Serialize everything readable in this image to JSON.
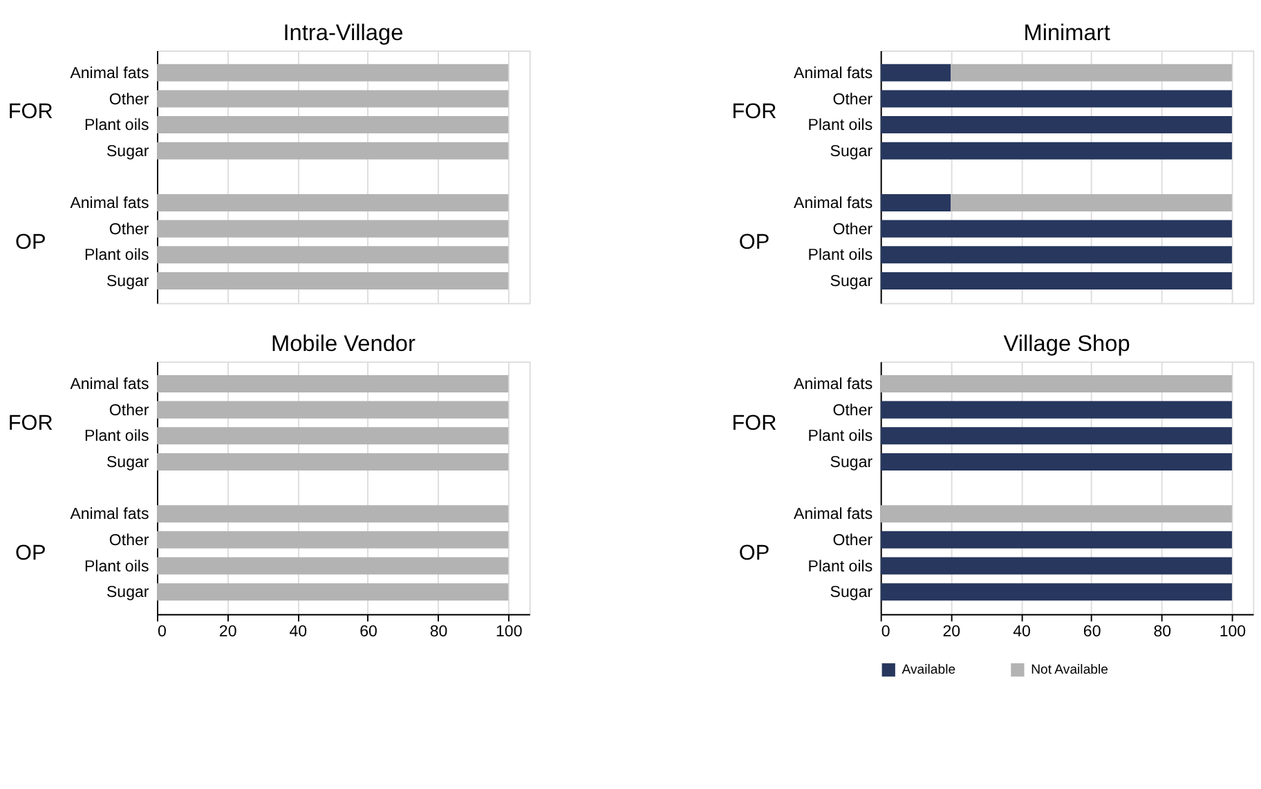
{
  "chart_data": [
    {
      "type": "bar",
      "title": "Intra-Village",
      "orientation": "horizontal",
      "stacked": true,
      "categories": [
        "Animal fats",
        "Other",
        "Plant oils",
        "Sugar",
        "Animal fats",
        "Other",
        "Plant oils",
        "Sugar"
      ],
      "annotations": [
        "FOR",
        "OP"
      ],
      "series": [
        {
          "color": "#27375e",
          "values": [
            0,
            0,
            0,
            0,
            0,
            0,
            0,
            0
          ]
        },
        {
          "color": "#b3b3b3",
          "values": [
            100,
            100,
            100,
            100,
            100,
            100,
            100,
            100
          ]
        }
      ],
      "xlim": [
        0,
        106
      ],
      "xticks": [
        0,
        20,
        40,
        60,
        80,
        100
      ],
      "grid": "x",
      "tick_labels": "y"
    },
    {
      "type": "bar",
      "title": "Minimart",
      "orientation": "horizontal",
      "stacked": true,
      "categories": [
        "Animal fats",
        "Other",
        "Plant oils",
        "Sugar",
        "Animal fats",
        "Other",
        "Plant oils",
        "Sugar"
      ],
      "annotations": [
        "FOR",
        "OP"
      ],
      "series": [
        {
          "color": "#27375e",
          "values": [
            20,
            100,
            100,
            100,
            20,
            100,
            100,
            100
          ]
        },
        {
          "color": "#b3b3b3",
          "values": [
            80,
            0,
            0,
            0,
            80,
            0,
            0,
            0
          ]
        }
      ],
      "xlim": [
        0,
        106
      ],
      "xticks": [
        0,
        20,
        40,
        60,
        80,
        100
      ],
      "grid": "x",
      "tick_labels": "y"
    },
    {
      "type": "bar",
      "title": "Mobile Vendor",
      "orientation": "horizontal",
      "stacked": true,
      "categories": [
        "Animal fats",
        "Other",
        "Plant oils",
        "Sugar",
        "Animal fats",
        "Other",
        "Plant oils",
        "Sugar"
      ],
      "annotations": [
        "FOR",
        "OP"
      ],
      "series": [
        {
          "color": "#27375e",
          "values": [
            0,
            0,
            0,
            0,
            0,
            0,
            0,
            0
          ]
        },
        {
          "color": "#b3b3b3",
          "values": [
            100,
            100,
            100,
            100,
            100,
            100,
            100,
            100
          ]
        }
      ],
      "xlim": [
        0,
        106
      ],
      "xticks": [
        0,
        20,
        40,
        60,
        80,
        100
      ],
      "grid": "x"
    },
    {
      "type": "bar",
      "title": "Village Shop",
      "orientation": "horizontal",
      "stacked": true,
      "categories": [
        "Animal fats",
        "Other",
        "Plant oils",
        "Sugar",
        "Animal fats",
        "Other",
        "Plant oils",
        "Sugar"
      ],
      "annotations": [
        "FOR",
        "OP"
      ],
      "series": [
        {
          "name": "Available",
          "color": "#27375e",
          "values": [
            0,
            100,
            100,
            100,
            0,
            100,
            100,
            100
          ]
        },
        {
          "name": "Not Available",
          "color": "#b3b3b3",
          "values": [
            100,
            0,
            0,
            0,
            100,
            0,
            0,
            0
          ]
        }
      ],
      "xlim": [
        0,
        106
      ],
      "xticks": [
        0,
        20,
        40,
        60,
        80,
        100
      ],
      "grid": "x",
      "legend": "bottom"
    }
  ]
}
